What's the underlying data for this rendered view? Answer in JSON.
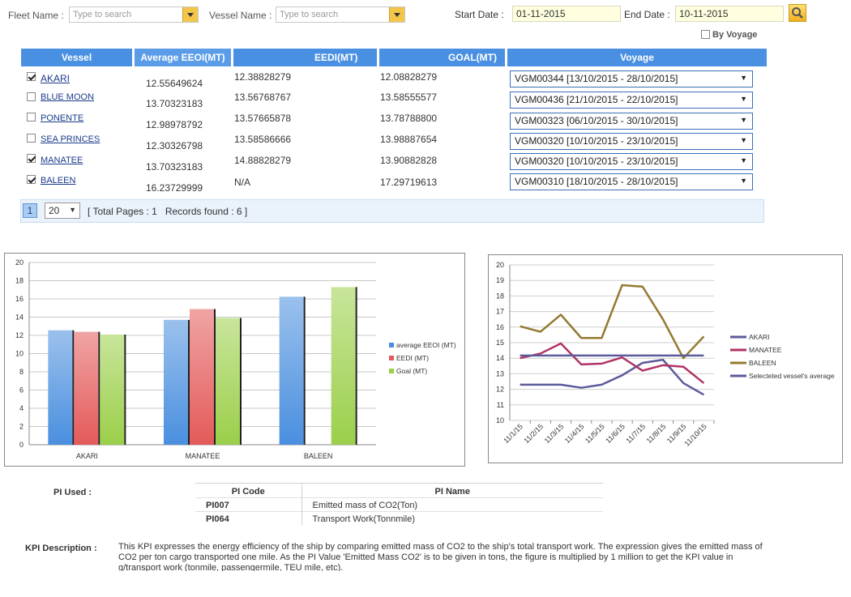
{
  "filters": {
    "fleet_label": "Fleet Name :",
    "fleet_placeholder": "Type to search",
    "vessel_label": "Vessel Name :",
    "vessel_placeholder": "Type to search",
    "start_label": "Start Date :",
    "start_value": "01-11-2015",
    "end_label": "End Date :",
    "end_value": "10-11-2015",
    "by_voyage_label": "By Voyage"
  },
  "table": {
    "headers": [
      "Vessel",
      "Average EEOI(MT)",
      "EEDI(MT)",
      "GOAL(MT)",
      "Voyage"
    ],
    "rows": [
      {
        "checked": true,
        "vessel": "AKARI",
        "eeoi": "12.55649624",
        "eedi": "12.38828279",
        "goal": "12.08828279",
        "voyage": "VGM00344 [13/10/2015 - 28/10/2015]"
      },
      {
        "checked": false,
        "vessel": "BLUE MOON",
        "eeoi": "13.70323183",
        "eedi": "13.56768767",
        "goal": "13.58555577",
        "voyage": "VGM00436 [21/10/2015 - 22/10/2015]"
      },
      {
        "checked": false,
        "vessel": "PONENTE",
        "eeoi": "12.98978792",
        "eedi": "13.57665878",
        "goal": "13.78788800",
        "voyage": "VGM00323 [06/10/2015 - 30/10/2015]"
      },
      {
        "checked": false,
        "vessel": "SEA PRINCES",
        "eeoi": "12.30326798",
        "eedi": "13.58586666",
        "goal": "13.98887654",
        "voyage": "VGM00320 [10/10/2015 - 23/10/2015]"
      },
      {
        "checked": true,
        "vessel": "MANATEE",
        "eeoi": "13.70323183",
        "eedi": "14.88828279",
        "goal": "13.90882828",
        "voyage": "VGM00320 [10/10/2015 - 23/10/2015]"
      },
      {
        "checked": true,
        "vessel": "BALEEN",
        "eeoi": "16.23729999",
        "eedi": "N/A",
        "goal": "17.29719613",
        "voyage": "VGM00310 [18/10/2015 - 28/10/2015]"
      }
    ]
  },
  "pager": {
    "current_page": "1",
    "page_size": "20",
    "summary": "[ Total Pages : 1   Records found : 6 ]"
  },
  "chart_data": [
    {
      "type": "bar",
      "categories": [
        "AKARI",
        "MANATEE",
        "BALEEN"
      ],
      "series": [
        {
          "name": "average EEOI (MT)",
          "color": "#4a8fdf",
          "values": [
            12.56,
            13.7,
            16.24
          ]
        },
        {
          "name": "EEDI (MT)",
          "color": "#e45a5a",
          "values": [
            12.39,
            14.89,
            null
          ]
        },
        {
          "name": "Goal (MT)",
          "color": "#9bcf4a",
          "values": [
            12.09,
            13.91,
            17.3
          ]
        }
      ],
      "ylim": [
        0,
        20
      ],
      "yticks": [
        0,
        2,
        4,
        6,
        8,
        10,
        12,
        14,
        16,
        18,
        20
      ],
      "legend": "right"
    },
    {
      "type": "line",
      "x": [
        "11/1/15",
        "11/2/15",
        "11/3/15",
        "11/4/15",
        "11/5/15",
        "11/6/15",
        "11/7/15",
        "11/8/15",
        "11/9/15",
        "11/10/15"
      ],
      "series": [
        {
          "name": "AKARI",
          "color": "#5b5b9b",
          "values": [
            12.3,
            12.3,
            12.3,
            12.1,
            12.3,
            12.9,
            13.7,
            13.9,
            12.4,
            11.65
          ]
        },
        {
          "name": "MANATEE",
          "color": "#b03366",
          "values": [
            14.0,
            14.3,
            14.95,
            13.6,
            13.65,
            14.05,
            13.2,
            13.55,
            13.45,
            12.4
          ]
        },
        {
          "name": "BALEEN",
          "color": "#937a30",
          "values": [
            16.05,
            15.7,
            16.8,
            15.3,
            15.3,
            18.7,
            18.6,
            16.5,
            14.0,
            15.4
          ]
        },
        {
          "name": "Selecteted vessel's average",
          "color": "#5b5b9b",
          "values": [
            14.17,
            14.17,
            14.17,
            14.17,
            14.17,
            14.17,
            14.17,
            14.17,
            14.17,
            14.17
          ]
        }
      ],
      "ylim": [
        10,
        20
      ],
      "yticks": [
        10,
        11,
        12,
        13,
        14,
        15,
        16,
        17,
        18,
        19,
        20
      ],
      "legend": "right"
    }
  ],
  "pi": {
    "label": "PI Used :",
    "headers": [
      "PI Code",
      "PI Name"
    ],
    "rows": [
      {
        "code": "PI007",
        "name": "Emitted mass of CO2(Ton)"
      },
      {
        "code": "PI064",
        "name": "Transport Work(Tonnmile)"
      }
    ]
  },
  "kpi": {
    "label": "KPI Description :",
    "text": "This KPI expresses the energy efficiency of the ship by comparing emitted mass of CO2 to the ship's total transport work. The expression gives the emitted mass of CO2 per ton cargo transported one mile. As the PI Value 'Emitted Mass CO2' is to be given in tons, the figure is multiplied by 1 million to get the KPI value in g/transport work (tonmile, passengermile, TEU mile, etc)."
  }
}
